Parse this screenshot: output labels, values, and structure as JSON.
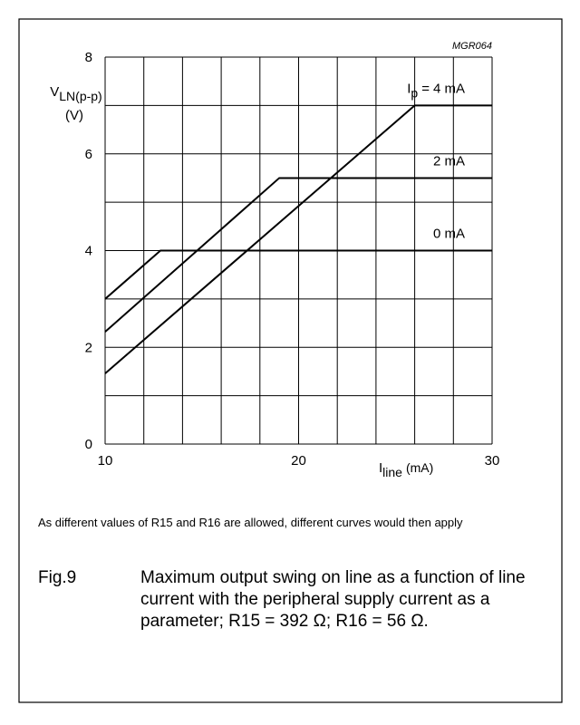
{
  "chart_data": {
    "type": "line",
    "code": "MGR064",
    "y_label": {
      "main": "V",
      "sub": "LN(p-p)",
      "unit": "(V)"
    },
    "x_label": {
      "main": "I",
      "sub": "line",
      "unit": "(mA)"
    },
    "series_name_prefix": {
      "main": "I",
      "sub": "p",
      "eq": "="
    },
    "xlim": [
      10,
      30
    ],
    "ylim": [
      0,
      8
    ],
    "xticks": [
      10,
      20,
      30
    ],
    "yticks": [
      0,
      2,
      4,
      6,
      8
    ],
    "xgrid": [
      10,
      12,
      14,
      16,
      18,
      20,
      22,
      24,
      26,
      28,
      30
    ],
    "ygrid": [
      0,
      1,
      2,
      3,
      4,
      5,
      6,
      7,
      8
    ],
    "grid": true,
    "series": [
      {
        "name": "4 mA",
        "color": "#000000",
        "x": [
          10,
          26,
          30
        ],
        "values": [
          1.46,
          7.0,
          7.0
        ]
      },
      {
        "name": "2 mA",
        "color": "#000000",
        "x": [
          10,
          19,
          30
        ],
        "values": [
          2.32,
          5.5,
          5.5
        ]
      },
      {
        "name": "0 mA",
        "color": "#000000",
        "x": [
          10,
          12.86,
          30
        ],
        "values": [
          3.0,
          4.0,
          4.0
        ]
      }
    ],
    "note": "As different values of R15 and R16 are allowed, different curves would then apply",
    "figure": "Fig.9",
    "caption": "Maximum output swing on line as a function of line current with the peripheral supply current as a parameter; R15 = 392 Ω; R16 = 56 Ω."
  }
}
